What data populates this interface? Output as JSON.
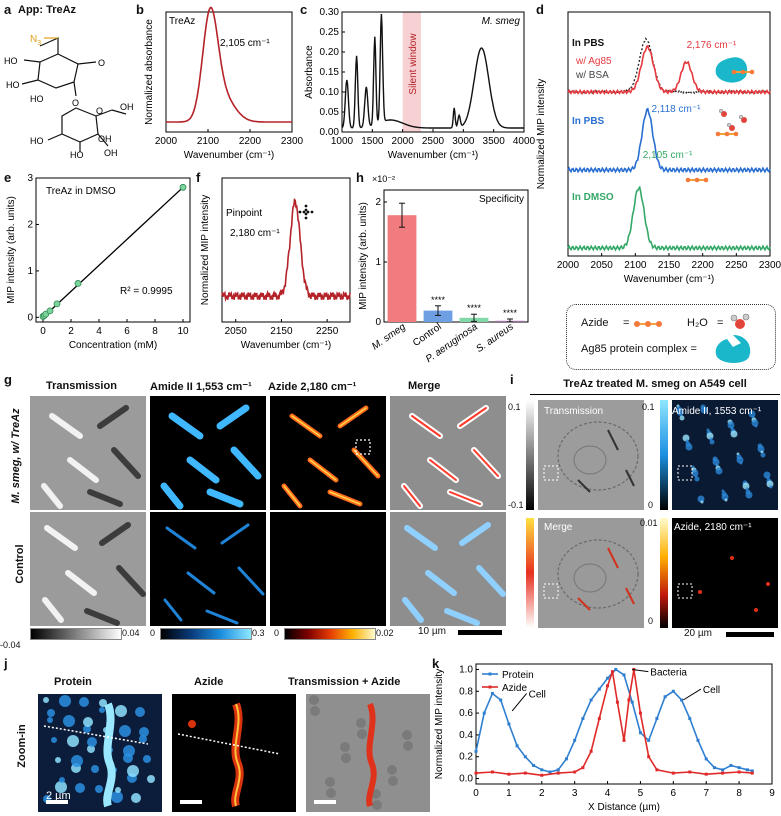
{
  "panel_letters": {
    "a": "a",
    "b": "b",
    "c": "c",
    "d": "d",
    "e": "e",
    "f": "f",
    "g": "g",
    "h": "h",
    "i": "i",
    "j": "j",
    "k": "k"
  },
  "panel_a": {
    "title": "App: TreAz",
    "n3": "N",
    "n3_sub": "3",
    "ho1": "HO",
    "ho2": "HO",
    "ho3": "HO",
    "ho4": "HO",
    "ho5": "HO",
    "oh1": "OH",
    "oh2": "OH",
    "oh3": "OH",
    "o": "O",
    "o2": "O",
    "o3": "O"
  },
  "chart_data": [
    {
      "id": "b",
      "type": "line",
      "title": "TreAz",
      "annotation": "2,105 cm⁻¹",
      "xlabel": "Wavenumber (cm⁻¹)",
      "ylabel": "Normalized absorbance",
      "xlim": [
        2000,
        2300
      ],
      "xticks": [
        "2000",
        "2100",
        "2200",
        "2300"
      ],
      "peak_x": 2105,
      "peak_width": 18,
      "color": "#b5232a"
    },
    {
      "id": "c",
      "type": "line",
      "title": "M. smeg",
      "region_label": "Silent window",
      "region": [
        2000,
        2300
      ],
      "xlabel": "Wavenumber (cm⁻¹)",
      "ylabel": "Absorbance",
      "xlim": [
        1000,
        4000
      ],
      "ylim": [
        0,
        0.3
      ],
      "xticks": [
        "1000",
        "1500",
        "2000",
        "2500",
        "3000",
        "3500",
        "4000"
      ],
      "yticks": [
        "0.00",
        "0.05",
        "0.10",
        "0.15",
        "0.20",
        "0.25",
        "0.30"
      ]
    },
    {
      "id": "d",
      "type": "line",
      "xlabel": "Wavenumber (cm⁻¹)",
      "ylabel": "Normalized MIP intensity",
      "xlim": [
        2000,
        2300
      ],
      "xticks": [
        "2000",
        "2050",
        "2100",
        "2150",
        "2200",
        "2250",
        "2300"
      ],
      "series": [
        {
          "label": "In PBS",
          "sub1": "w/ Ag85",
          "sub2": "w/ BSA",
          "peak_label": "2,176 cm⁻¹",
          "color": "#e5393f",
          "peaks": [
            2118,
            2176
          ]
        },
        {
          "label": "In PBS",
          "peak_label": "2,118 cm⁻¹",
          "color": "#2a6fd1",
          "peaks": [
            2118
          ]
        },
        {
          "label": "In DMSO",
          "peak_label": "2,105 cm⁻¹",
          "color": "#35a867",
          "peaks": [
            2105
          ]
        }
      ],
      "legend": {
        "azide": "Azide",
        "eq": "=",
        "h2o": "H₂O",
        "eq2": "=",
        "ag85": "Ag85 protein complex ="
      }
    },
    {
      "id": "e",
      "type": "scatter",
      "title": "TreAz in DMSO",
      "annotation": "R² = 0.9995",
      "xlabel": "Concentration (mM)",
      "ylabel": "MIP intensity (arb. units)",
      "xlim": [
        -0.5,
        10.5
      ],
      "ylim": [
        -0.1,
        3.0
      ],
      "xticks": [
        "0",
        "2",
        "4",
        "6",
        "8",
        "10"
      ],
      "yticks": [
        "0",
        "1",
        "2",
        "3"
      ],
      "x": [
        0,
        0.1,
        0.2,
        0.5,
        1,
        2.5,
        10
      ],
      "y": [
        0.02,
        0.04,
        0.07,
        0.14,
        0.29,
        0.73,
        2.8
      ]
    },
    {
      "id": "f",
      "type": "line",
      "title": "Pinpoint",
      "annotation": "2,180 cm⁻¹",
      "xlabel": "Wavenumber (cm⁻¹)",
      "ylabel": "Normalized MIP intensity",
      "xlim": [
        2020,
        2300
      ],
      "xticks": [
        "2050",
        "2150",
        "2250"
      ],
      "peak_x": 2180,
      "color": "#b5232a"
    },
    {
      "id": "h",
      "type": "bar",
      "title": "Specificity",
      "scale_label": "×10⁻²",
      "ylabel": "MIP intensity (arb. units)",
      "ylim": [
        0,
        2.2
      ],
      "yticks": [
        "0",
        "1",
        "2"
      ],
      "categories": [
        "M. smeg",
        "Control",
        "P. aeruginosa",
        "S. aureus"
      ],
      "values": [
        1.78,
        0.19,
        0.07,
        0.02
      ],
      "errors": [
        0.2,
        0.08,
        0.06,
        0.03
      ],
      "colors": [
        "#f07c80",
        "#6f9fe3",
        "#7fd8a5",
        "#a06fa6"
      ],
      "sig": [
        "",
        "****",
        "****",
        "****"
      ]
    },
    {
      "id": "k",
      "type": "line",
      "xlabel": "X Distance (µm)",
      "ylabel": "Normalized MIP intensity",
      "xlim": [
        0,
        9
      ],
      "ylim": [
        -0.05,
        1.05
      ],
      "xticks": [
        "0",
        "1",
        "2",
        "3",
        "4",
        "5",
        "6",
        "7",
        "8",
        "9"
      ],
      "yticks": [
        "0.0",
        "0.2",
        "0.4",
        "0.6",
        "0.8",
        "1.0"
      ],
      "legend": [
        "Protein",
        "Azide"
      ],
      "annotations": [
        "Cell",
        "Bacteria",
        "Cell"
      ],
      "series": [
        {
          "name": "Protein",
          "color": "#2f7fd1",
          "x": [
            0,
            0.25,
            0.5,
            0.75,
            1,
            1.25,
            1.5,
            1.75,
            2,
            2.25,
            2.5,
            2.75,
            3,
            3.25,
            3.5,
            3.75,
            4,
            4.25,
            4.5,
            4.75,
            5,
            5.25,
            5.5,
            5.75,
            6,
            6.25,
            6.5,
            6.75,
            7,
            7.25,
            7.5,
            7.75,
            8,
            8.25,
            8.4
          ],
          "y": [
            0.25,
            0.6,
            0.78,
            0.72,
            0.5,
            0.3,
            0.2,
            0.12,
            0.08,
            0.06,
            0.08,
            0.18,
            0.35,
            0.55,
            0.72,
            0.82,
            0.92,
            1.0,
            0.95,
            0.7,
            0.42,
            0.35,
            0.55,
            0.75,
            0.8,
            0.72,
            0.55,
            0.35,
            0.18,
            0.1,
            0.08,
            0.12,
            0.1,
            0.08,
            0.07
          ]
        },
        {
          "name": "Azide",
          "color": "#e02a2a",
          "x": [
            0,
            0.5,
            1,
            1.5,
            2,
            2.5,
            3,
            3.25,
            3.5,
            3.75,
            4,
            4.15,
            4.3,
            4.5,
            4.65,
            4.8,
            5,
            5.25,
            5.5,
            6,
            6.5,
            7,
            7.5,
            8,
            8.4
          ],
          "y": [
            0.05,
            0.06,
            0.04,
            0.05,
            0.03,
            0.05,
            0.06,
            0.1,
            0.25,
            0.55,
            0.85,
            0.98,
            0.7,
            0.35,
            0.72,
            1.0,
            0.6,
            0.2,
            0.08,
            0.05,
            0.06,
            0.04,
            0.05,
            0.06,
            0.05
          ]
        }
      ]
    }
  ],
  "panel_g": {
    "cols": [
      "Transmission",
      "Amide II  1,553 cm⁻¹",
      "Azide  2,180 cm⁻¹",
      "Merge"
    ],
    "rows": [
      "M. smeg, w/ TreAz",
      "Control"
    ],
    "cb1": [
      "-0.04",
      "0.04"
    ],
    "cb2": [
      "0",
      "0.3"
    ],
    "cb3": [
      "0",
      "0.02"
    ],
    "scale": "10 µm"
  },
  "panel_i": {
    "title": "TreAz treated M. smeg on A549 cell",
    "tl": "Transmission",
    "tr": "Amide II, 1553 cm⁻¹",
    "bl": "Merge",
    "br": "Azide, 2180 cm⁻¹",
    "cb_l": [
      "0.1",
      "-0.1"
    ],
    "cb_r1": [
      "0.1",
      "0"
    ],
    "cb_r2": [
      "0.01",
      "0"
    ],
    "scale": "20 µm"
  },
  "panel_j": {
    "cols": [
      "Protein",
      "Azide",
      "Transmission + Azide"
    ],
    "row": "Zoom-in",
    "scale": "2 µm"
  }
}
